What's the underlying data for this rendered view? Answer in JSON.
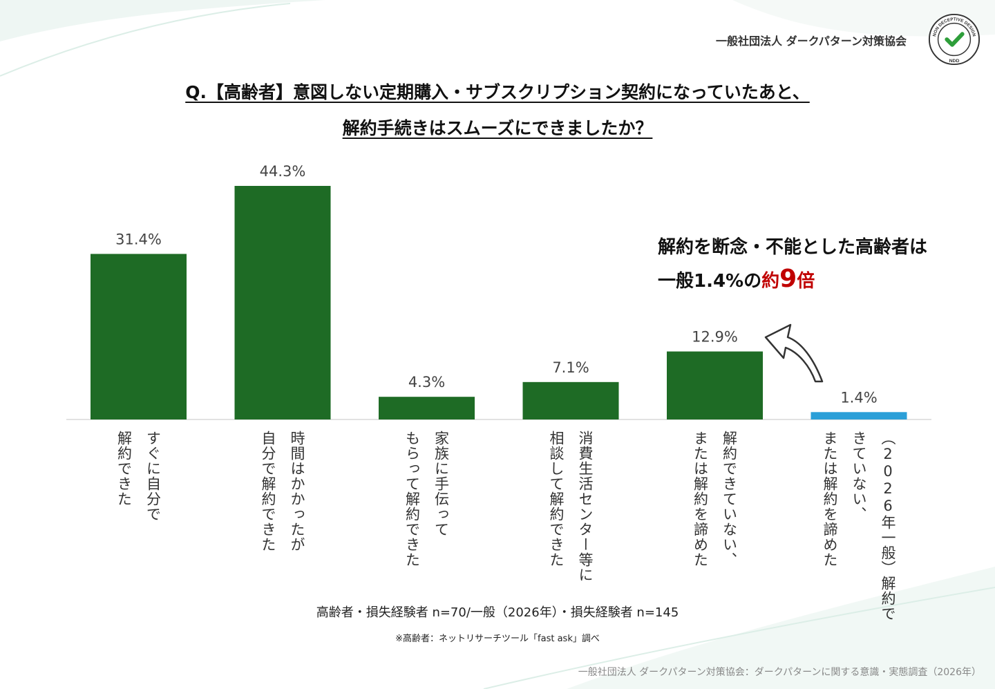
{
  "header": {
    "org": "一般社団法人 ダークパターン対策協会",
    "badge_text": "NON DECEPTIVE DESIGN",
    "badge_abbrev": "NDD"
  },
  "title": {
    "line1": "Q.【高齢者】意図しない定期購入・サブスクリプション契約になっていたあと、",
    "line2": "解約手続きはスムーズにできましたか？"
  },
  "callout": {
    "line1": "解約を断念・不能とした高齢者は",
    "line2_prefix": "一般1.4%の",
    "line2_yaku": "約",
    "line2_num": "9",
    "line2_suffix": "倍"
  },
  "chart_data": {
    "type": "bar",
    "categories": [
      "すぐに自分で解約できた",
      "時間はかかったが自分で解約できた",
      "家族に手伝ってもらって解約できた",
      "消費生活センター等に相談して解約できた",
      "解約できていない、または解約を諦めた",
      "（2026年一般）解約できていない、または解約を諦めた"
    ],
    "category_lines": [
      [
        "すぐに自分で",
        "解約できた"
      ],
      [
        "時間はかかったが",
        "自分で解約できた"
      ],
      [
        "家族に手伝って",
        "もらって解約できた"
      ],
      [
        "消費生活センター等に",
        "相談して解約できた"
      ],
      [
        "解約できていない、",
        "または解約を諦めた"
      ],
      [
        "（2026年一般）解約で",
        "きていない、",
        "または解約を諦めた"
      ]
    ],
    "values": [
      31.4,
      44.3,
      4.3,
      7.1,
      12.9,
      1.4
    ],
    "labels": [
      "31.4%",
      "44.3%",
      "4.3%",
      "7.1%",
      "12.9%",
      "1.4%"
    ],
    "colors": [
      "#1e6b25",
      "#1e6b25",
      "#1e6b25",
      "#1e6b25",
      "#1e6b25",
      "#2b9fd8"
    ],
    "ylim": [
      0,
      44.3
    ]
  },
  "footer": {
    "sample": "高齢者・損失経験者 n=70/一般（2026年）・損失経験者 n=145",
    "note": "※高齢者：ネットリサーチツール「fast ask」調べ",
    "source": "一般社団法人 ダークパターン対策協会：ダークパターンに関する意識・実態調査（2026年）"
  }
}
